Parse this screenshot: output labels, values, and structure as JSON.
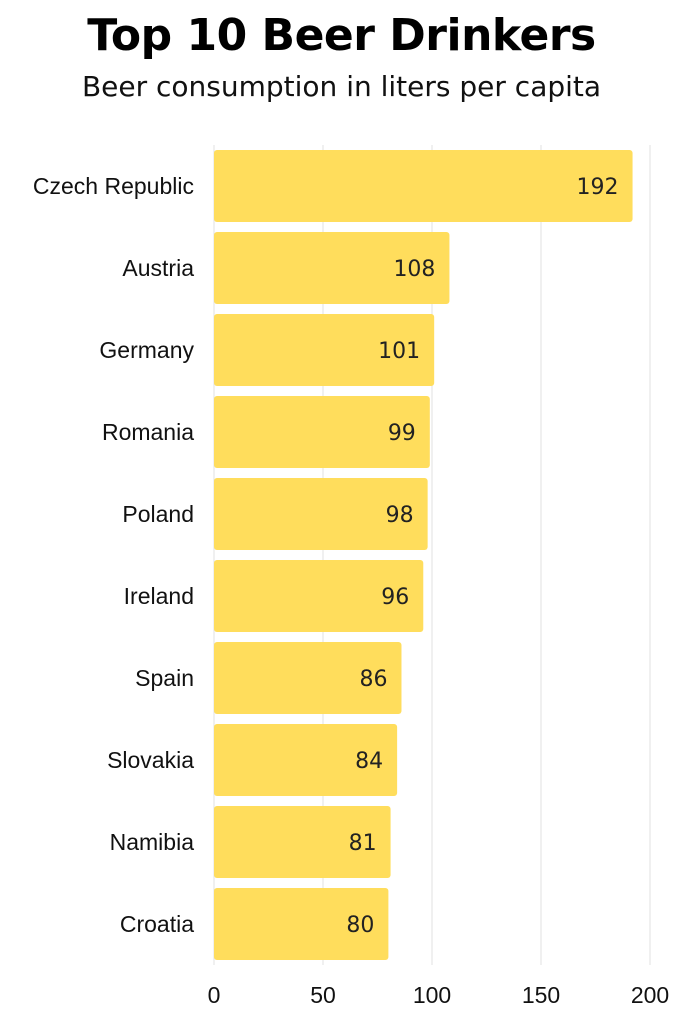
{
  "chart_data": {
    "type": "bar",
    "orientation": "horizontal",
    "title": "Top 10 Beer Drinkers",
    "subtitle": "Beer consumption in liters per capita",
    "categories": [
      "Czech Republic",
      "Austria",
      "Germany",
      "Romania",
      "Poland",
      "Ireland",
      "Spain",
      "Slovakia",
      "Namibia",
      "Croatia"
    ],
    "values": [
      192,
      108,
      101,
      99,
      98,
      96,
      86,
      84,
      81,
      80
    ],
    "xlim": [
      0,
      200
    ],
    "xticks": [
      0,
      50,
      100,
      150,
      200
    ],
    "grid": true,
    "bar_color": "#FFDD5C",
    "grid_color": "#E2E2E2"
  }
}
